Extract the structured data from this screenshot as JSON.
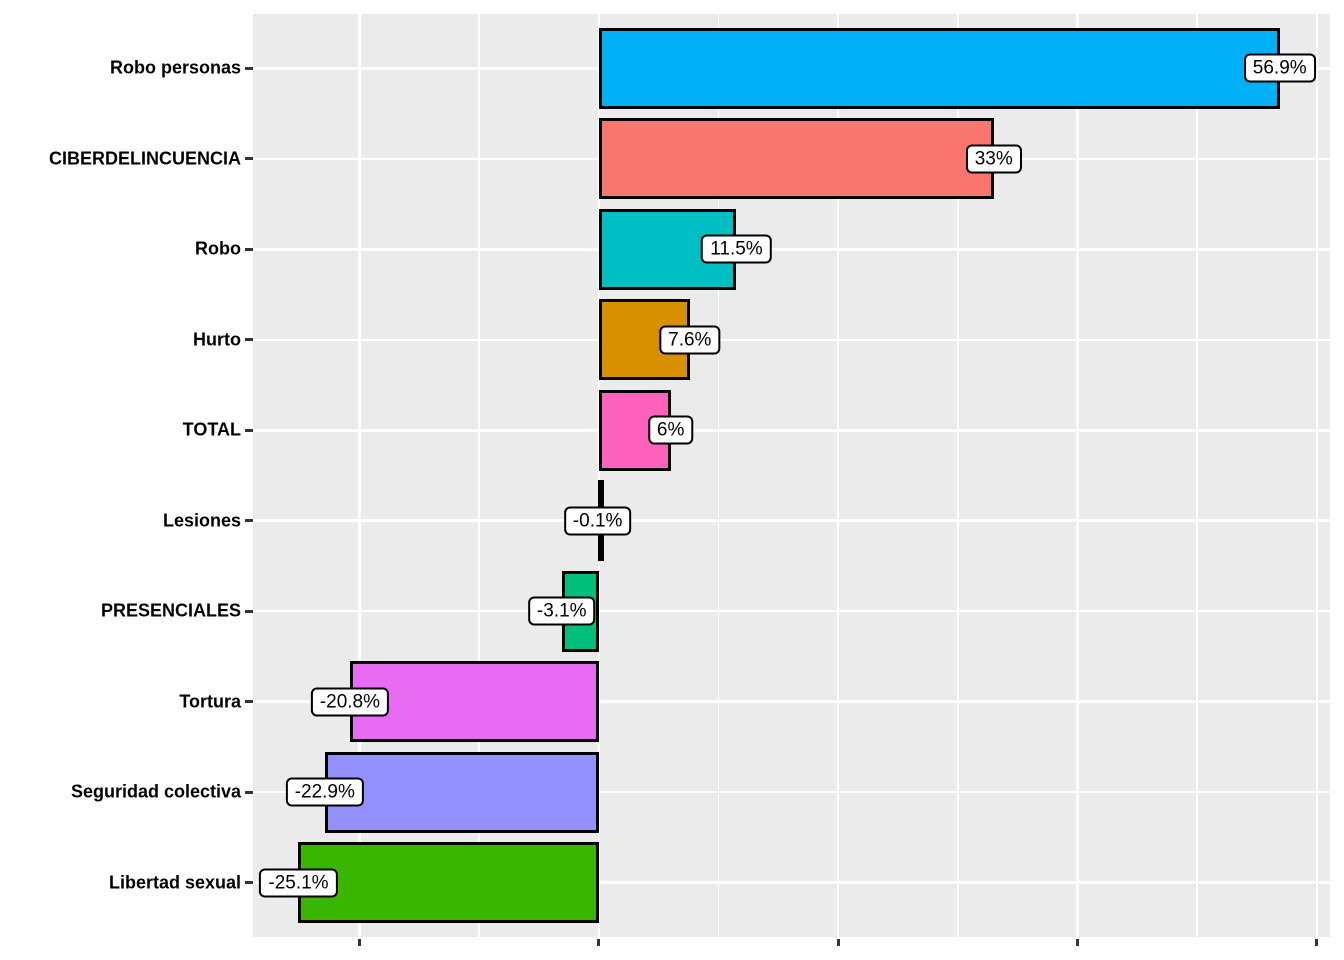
{
  "chart_data": {
    "type": "bar",
    "orientation": "horizontal",
    "title": "",
    "xlabel": "",
    "ylabel": "",
    "legend": "none",
    "grid": true,
    "categories": [
      "Robo personas",
      "CIBERDELINCUENCIA",
      "Robo",
      "Hurto",
      "TOTAL",
      "Lesiones",
      "PRESENCIALES",
      "Tortura",
      "Seguridad colectiva",
      "Libertad sexual"
    ],
    "values": [
      56.9,
      33,
      11.5,
      7.6,
      6,
      -0.1,
      -3.1,
      -20.8,
      -22.9,
      -25.1
    ],
    "value_labels": [
      "56.9%",
      "33%",
      "11.5%",
      "7.6%",
      "6%",
      "-0.1%",
      "-3.1%",
      "-20.8%",
      "-22.9%",
      "-25.1%"
    ],
    "bar_colors": [
      "#00B0F6",
      "#F8766D",
      "#00BFC4",
      "#D89000",
      "#FF62BC",
      "#A3A500",
      "#00BF7D",
      "#E76BF3",
      "#9590FF",
      "#39B600"
    ],
    "xlim": [
      -28.9,
      61.1
    ],
    "x_major_ticks": [
      -20,
      0,
      20,
      40,
      60
    ],
    "x_minor_ticks": [
      -10,
      10,
      30,
      50
    ],
    "x_tick_labels": [],
    "colors": {
      "panel_bg": "#EBEBEB",
      "grid": "#FFFFFF",
      "bar_border": "#000000",
      "axis_tick": "#333333",
      "category_text": "#000000",
      "value_text": "#000000",
      "value_box_bg": "#FFFFFF",
      "value_box_border": "#000000"
    }
  }
}
